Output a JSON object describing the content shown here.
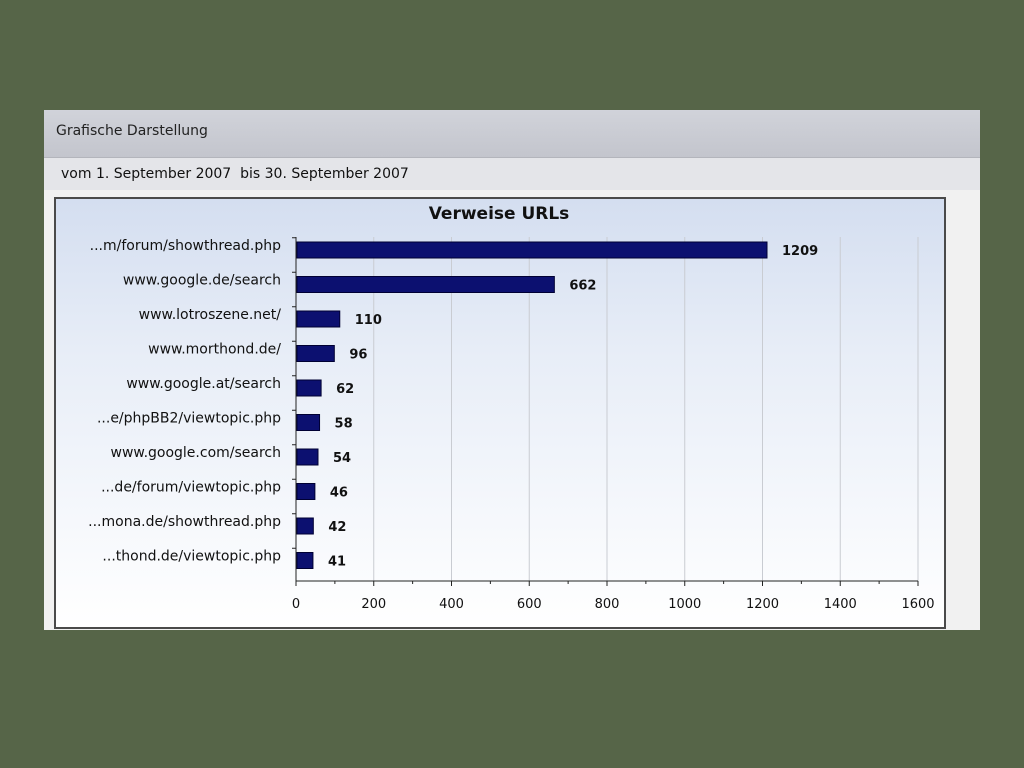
{
  "panel": {
    "title": "Grafische Darstellung",
    "date_range": "vom 1. September 2007  bis 30. September 2007"
  },
  "colors": {
    "bar_fill": "#0c1070",
    "page_background": "#566548"
  },
  "chart_data": {
    "type": "bar",
    "orientation": "horizontal",
    "title": "Verweise URLs",
    "xlabel": "",
    "ylabel": "",
    "xlim": [
      0,
      1600
    ],
    "x_ticks": [
      0,
      200,
      400,
      600,
      800,
      1000,
      1200,
      1400,
      1600
    ],
    "grid": "vertical",
    "categories": [
      "...m/forum/showthread.php",
      "www.google.de/search",
      "www.lotroszene.net/",
      "www.morthond.de/",
      "www.google.at/search",
      "...e/phpBB2/viewtopic.php",
      "www.google.com/search",
      "...de/forum/viewtopic.php",
      "...mona.de/showthread.php",
      "...thond.de/viewtopic.php"
    ],
    "values": [
      1209,
      662,
      110,
      96,
      62,
      58,
      54,
      46,
      42,
      41
    ]
  }
}
